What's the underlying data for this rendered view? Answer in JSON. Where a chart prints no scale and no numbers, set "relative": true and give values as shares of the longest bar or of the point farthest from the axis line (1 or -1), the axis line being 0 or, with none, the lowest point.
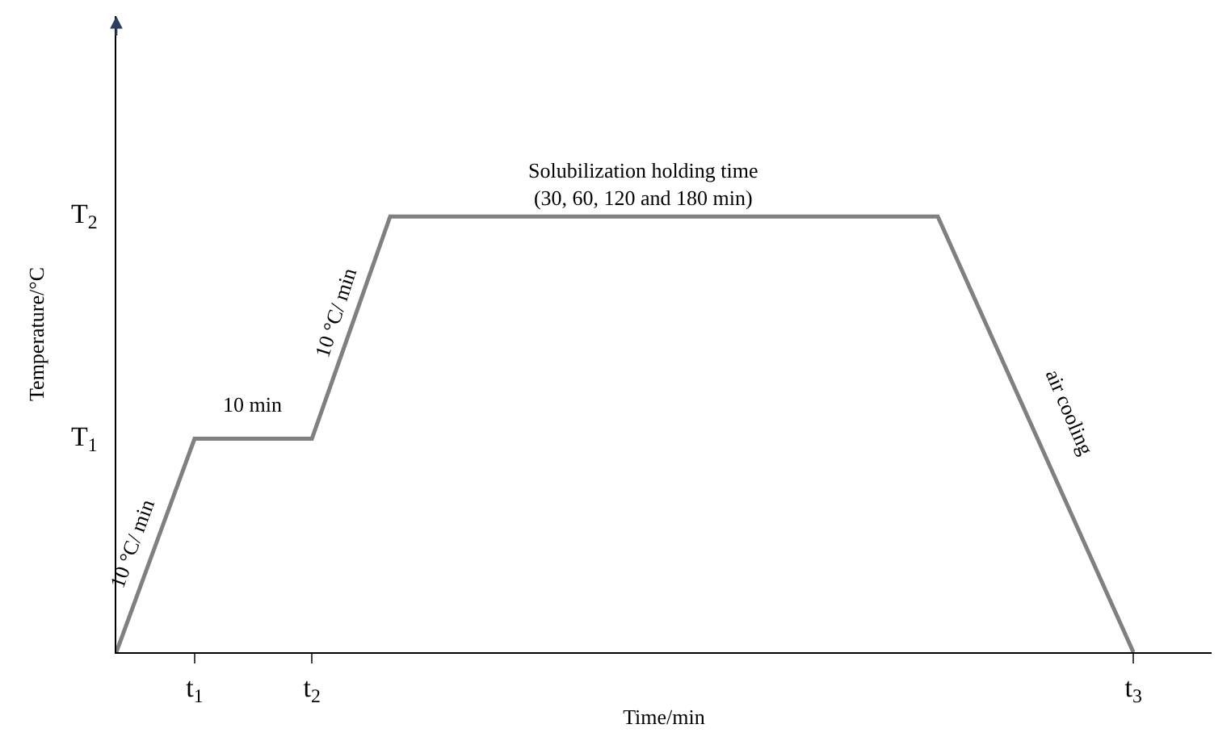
{
  "chart_data": {
    "type": "line",
    "relative": true,
    "xlabel": "Time/min",
    "ylabel": "Temperature/°C",
    "categories": [
      null,
      null,
      "t$_{1}$",
      null,
      null,
      "t$_{2}$",
      null,
      null,
      null,
      null,
      null,
      null,
      null,
      null,
      null,
      null,
      null,
      null,
      null,
      null,
      null,
      null,
      null,
      null,
      null,
      null,
      "t$_{3}$",
      null,
      null
    ],
    "series": [
      {
        "color": "#808080",
        "values": [
          0,
          0.245,
          0.49,
          0.49,
          0.49,
          0.49,
          0.745,
          1,
          1,
          1,
          1,
          1,
          1,
          1,
          1,
          1,
          1,
          1,
          1,
          1,
          1,
          1,
          0.8,
          0.6,
          0.4,
          0.2,
          0,
          null,
          null
        ]
      }
    ],
    "annotations": [
      "T$_{1}$",
      "T$_{2}$",
      "10 °C/ min",
      "10 min",
      "10 °C/ min",
      "Solubilization holding time\n(30, 60, 120 and 180 min)",
      "air cooling"
    ],
    "legend": false,
    "marker": "none",
    "line_style": "solid"
  }
}
